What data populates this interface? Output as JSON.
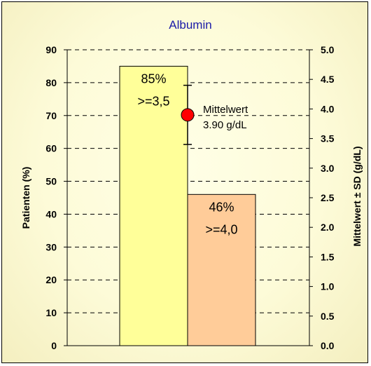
{
  "chart_data": {
    "type": "bar",
    "title": "Albumin",
    "ylabel": "Patienten (%)",
    "y2label": "Mittelwert ± SD (g/dL)",
    "ylim": [
      0,
      90
    ],
    "y2lim": [
      0,
      5.0
    ],
    "yticks": [
      "0",
      "10",
      "20",
      "30",
      "40",
      "50",
      "60",
      "70",
      "80",
      "90"
    ],
    "y2ticks": [
      "0.0",
      "0.5",
      "1.0",
      "1.5",
      "2.0",
      "2.5",
      "3.0",
      "3.5",
      "4.0",
      "4.5",
      "5.0"
    ],
    "grid": "horizontal dashed",
    "bars": [
      {
        "value": 85,
        "pct_label": "85%",
        "threshold_label": ">=3,5",
        "color": "#ffff99"
      },
      {
        "value": 46,
        "pct_label": "46%",
        "threshold_label": ">=4,0",
        "color": "#ffcc99"
      }
    ],
    "mean": {
      "value": 3.9,
      "sd_low": 3.4,
      "sd_high": 4.4,
      "label_line1": "Mittelwert",
      "label_line2": "3.90 g/dL",
      "marker_color": "#ff0000"
    }
  }
}
